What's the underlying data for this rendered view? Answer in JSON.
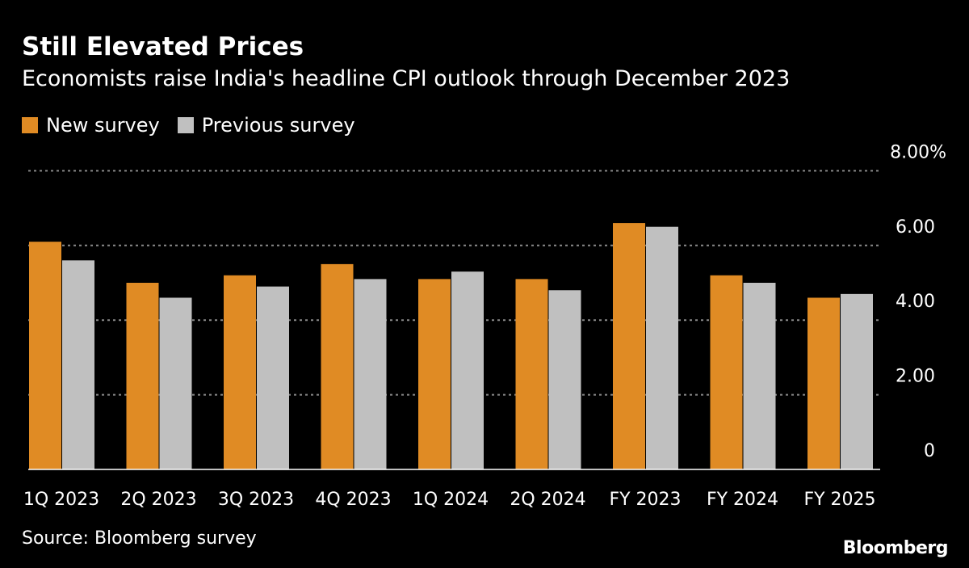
{
  "chart_data": {
    "type": "bar",
    "title": "Still Elevated Prices",
    "subtitle": "Economists raise India's headline CPI outlook through December 2023",
    "categories": [
      "1Q 2023",
      "2Q 2023",
      "3Q 2023",
      "4Q 2023",
      "1Q 2024",
      "2Q 2024",
      "FY 2023",
      "FY 2024",
      "FY 2025"
    ],
    "series": [
      {
        "name": "New survey",
        "color": "#e08b24",
        "values": [
          6.1,
          5.0,
          5.2,
          5.5,
          5.1,
          5.1,
          6.6,
          5.2,
          4.6
        ]
      },
      {
        "name": "Previous survey",
        "color": "#c0c0c0",
        "values": [
          5.6,
          4.6,
          4.9,
          5.1,
          5.3,
          4.8,
          6.5,
          5.0,
          4.7
        ]
      }
    ],
    "ylim": [
      0,
      8
    ],
    "yticks": [
      0,
      2,
      4,
      6,
      8
    ],
    "ytick_labels": [
      "0",
      "2.00",
      "4.00",
      "6.00",
      "8.00%"
    ],
    "grid": true,
    "y_axis_position": "right",
    "legend_placement": "top-left"
  },
  "source": "Source: Bloomberg survey",
  "logo": "Bloomberg"
}
